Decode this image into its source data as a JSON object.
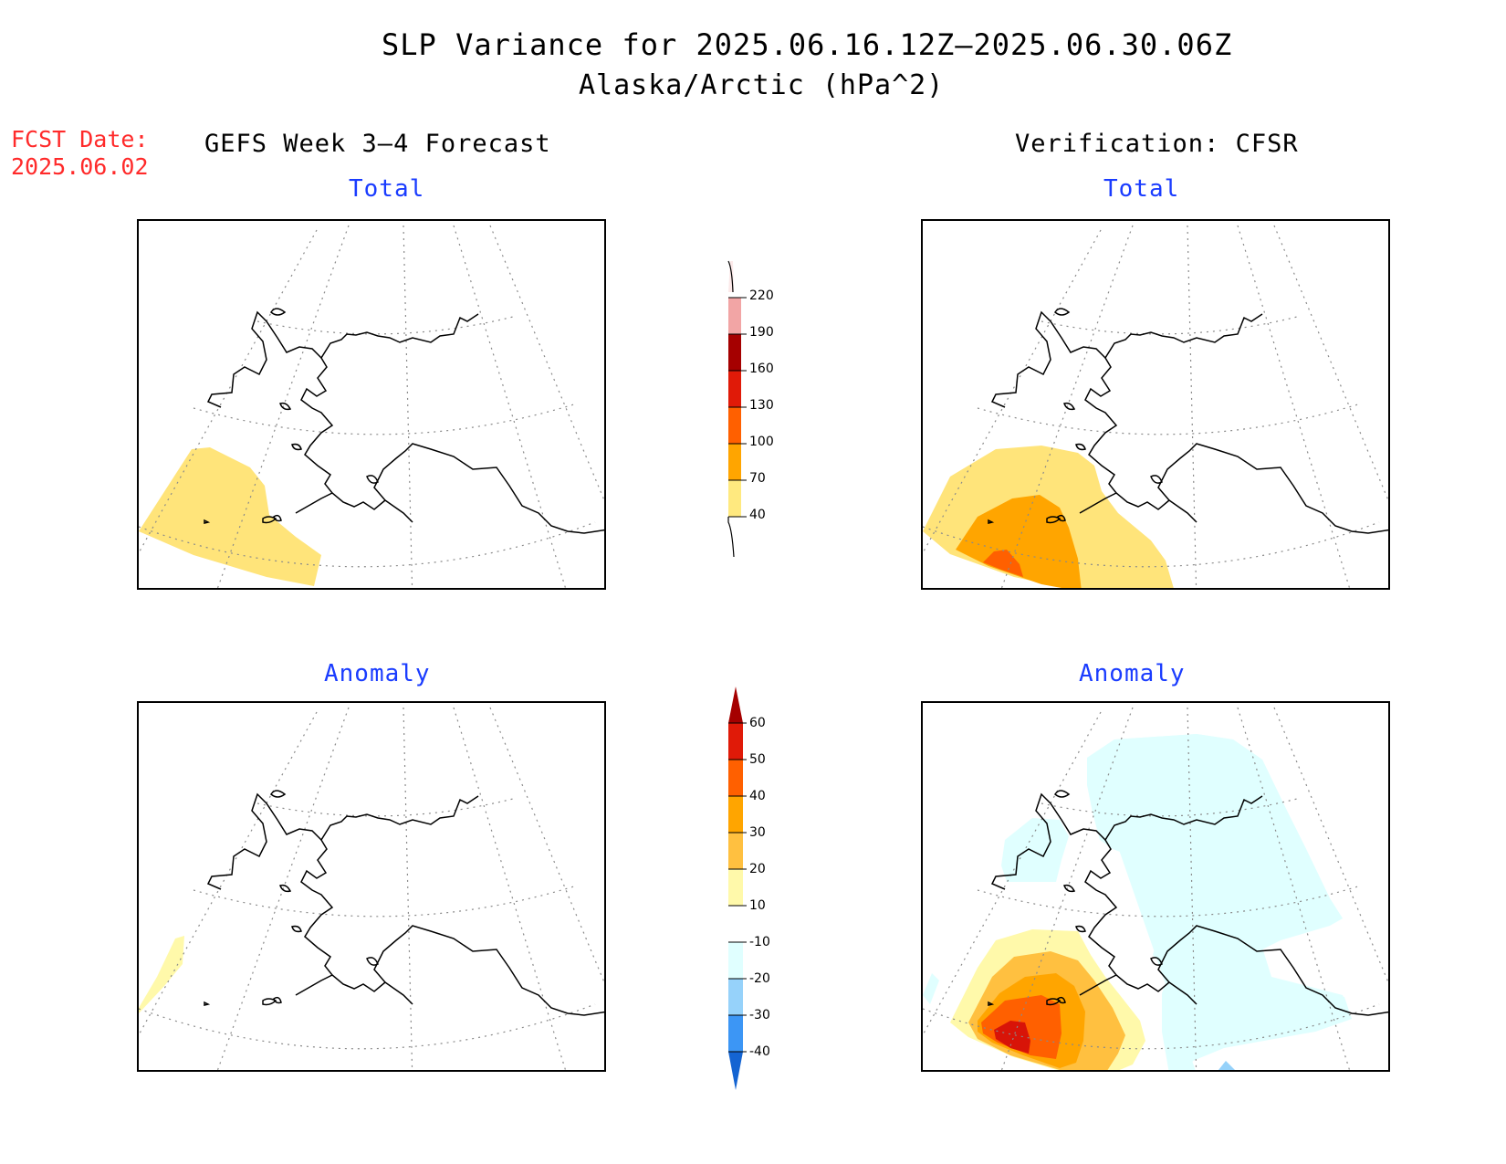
{
  "title": "SLP Variance for 2025.06.16.12Z–2025.06.30.06Z",
  "subtitle": "Alaska/Arctic (hPa^2)",
  "fcst_label": "FCST Date:",
  "fcst_date": "2025.06.02",
  "left_column_title": "GEFS Week 3–4 Forecast",
  "right_column_title": "Verification: CFSR",
  "panels": {
    "forecast_total": "Total",
    "verification_total": "Total",
    "forecast_anomaly": "Anomaly",
    "verification_anomaly": "Anomaly"
  },
  "colorbars": {
    "total": {
      "levels": [
        "40",
        "70",
        "100",
        "130",
        "160",
        "190",
        "220"
      ],
      "colors": [
        "#ffe97f",
        "#ffa500",
        "#ff6000",
        "#e01a08",
        "#a50000",
        "#f2a5a5",
        "#fce9e9"
      ]
    },
    "anomaly": {
      "levels": [
        "60",
        "50",
        "40",
        "30",
        "20",
        "10",
        "-10",
        "-20",
        "-30",
        "-40"
      ],
      "colors_top_to_bottom": [
        "#a50000",
        "#e01a08",
        "#ff6000",
        "#ffa500",
        "#ffc040",
        "#fff9aa",
        "#ffffff",
        "#e0ffff",
        "#96d2fa",
        "#3c96f5",
        "#1464d2"
      ]
    }
  },
  "colors": {
    "title_blue": "#1a3cff",
    "fcst_red": "#ff2a2a"
  }
}
